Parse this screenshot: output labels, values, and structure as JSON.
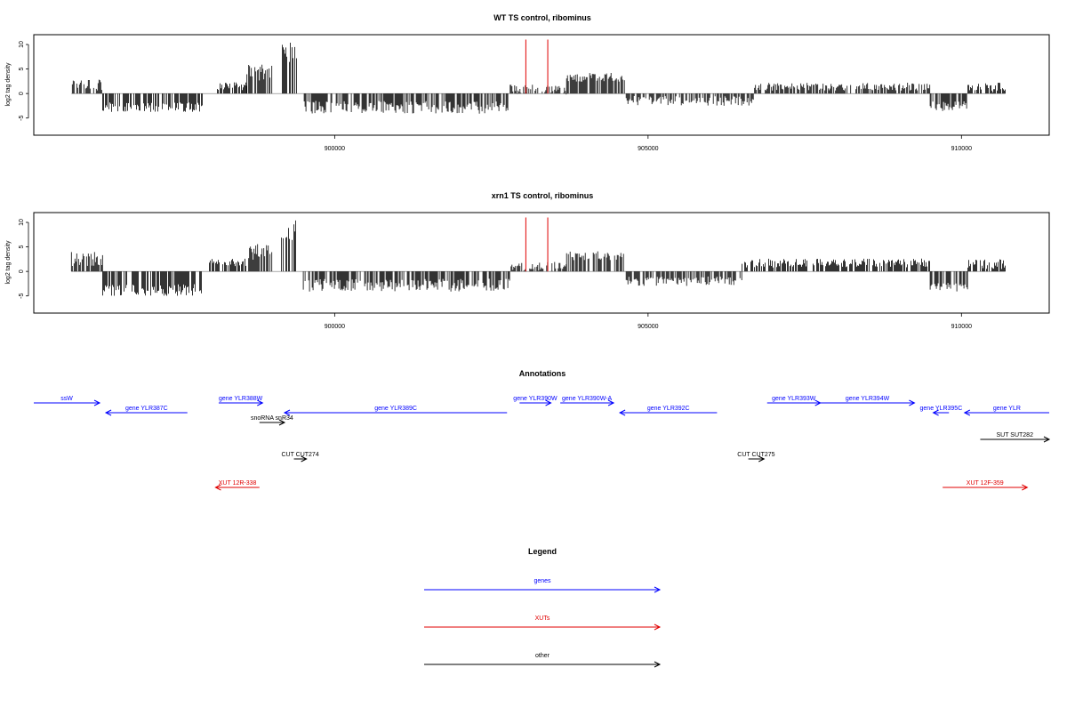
{
  "colors": {
    "axis": "#000000",
    "bars": "#000000",
    "marker": "#e00000",
    "genes": "#0000ff",
    "xuts": "#e00000",
    "other": "#000000"
  },
  "chart_data": [
    {
      "type": "bar",
      "title": "WT TS control, ribominus",
      "xlabel": "",
      "ylabel": "log2 tag density",
      "xlim": [
        895200,
        911400
      ],
      "ylim": [
        -8.5,
        12
      ],
      "x_ticks": [
        900000,
        905000,
        910000
      ],
      "x_tick_labels": [
        "900000",
        "905000",
        "910000"
      ],
      "y_ticks": [
        -5,
        0,
        5,
        10
      ],
      "y_tick_labels": [
        "-5",
        "0",
        "5",
        "10"
      ],
      "data_extent": [
        895800,
        910700
      ],
      "marker_lines": [
        903050,
        903400
      ],
      "segments": [
        {
          "from": 895800,
          "to": 896300,
          "level": 2.0,
          "spread": 1.5
        },
        {
          "from": 896300,
          "to": 897900,
          "level": -2.8,
          "spread": 1.0
        },
        {
          "from": 898100,
          "to": 898600,
          "level": 1.5,
          "spread": 0.8
        },
        {
          "from": 898600,
          "to": 899000,
          "level": 4.2,
          "spread": 1.8
        },
        {
          "from": 899150,
          "to": 899400,
          "level": 8.5,
          "spread": 2.2
        },
        {
          "from": 899500,
          "to": 902800,
          "level": -2.8,
          "spread": 1.3
        },
        {
          "from": 902800,
          "to": 903700,
          "level": 0.8,
          "spread": 1.0
        },
        {
          "from": 903700,
          "to": 904650,
          "level": 3.3,
          "spread": 0.9
        },
        {
          "from": 904650,
          "to": 906700,
          "level": -1.5,
          "spread": 1.0
        },
        {
          "from": 906700,
          "to": 909500,
          "level": 1.4,
          "spread": 0.8
        },
        {
          "from": 909500,
          "to": 910100,
          "level": -2.6,
          "spread": 1.0
        },
        {
          "from": 910100,
          "to": 910700,
          "level": 1.2,
          "spread": 1.0
        }
      ]
    },
    {
      "type": "bar",
      "title": "xrn1 TS control, ribominus",
      "xlabel": "",
      "ylabel": "log2 tag density",
      "xlim": [
        895200,
        911400
      ],
      "ylim": [
        -8.5,
        12
      ],
      "x_ticks": [
        900000,
        905000,
        910000
      ],
      "x_tick_labels": [
        "900000",
        "905000",
        "910000"
      ],
      "y_ticks": [
        -5,
        0,
        5,
        10
      ],
      "y_tick_labels": [
        "-5",
        "0",
        "5",
        "10"
      ],
      "data_extent": [
        895800,
        910700
      ],
      "marker_lines": [
        903050,
        903400
      ],
      "segments": [
        {
          "from": 895800,
          "to": 896300,
          "level": 2.5,
          "spread": 1.5
        },
        {
          "from": 896300,
          "to": 897900,
          "level": -3.8,
          "spread": 1.2
        },
        {
          "from": 898000,
          "to": 898600,
          "level": 1.8,
          "spread": 0.8
        },
        {
          "from": 898600,
          "to": 899000,
          "level": 4.0,
          "spread": 1.6
        },
        {
          "from": 899150,
          "to": 899400,
          "level": 8.5,
          "spread": 2.2
        },
        {
          "from": 899500,
          "to": 902800,
          "level": -2.8,
          "spread": 1.3
        },
        {
          "from": 902800,
          "to": 903700,
          "level": 1.0,
          "spread": 1.0
        },
        {
          "from": 903700,
          "to": 904650,
          "level": 3.2,
          "spread": 0.9
        },
        {
          "from": 904650,
          "to": 906500,
          "level": -2.0,
          "spread": 1.0
        },
        {
          "from": 906500,
          "to": 909500,
          "level": 1.7,
          "spread": 0.9
        },
        {
          "from": 909500,
          "to": 910100,
          "level": -3.2,
          "spread": 1.0
        },
        {
          "from": 910100,
          "to": 910700,
          "level": 1.5,
          "spread": 1.0
        }
      ]
    }
  ],
  "annotations": {
    "title": "Annotations",
    "features": [
      {
        "label": "ssW",
        "category": "genes",
        "strand": "+",
        "start": 895200,
        "end": 896250,
        "row": 0
      },
      {
        "label": "gene YLR387C",
        "category": "genes",
        "strand": "-",
        "start": 896350,
        "end": 897650,
        "row": 1
      },
      {
        "label": "gene YLR388W",
        "category": "genes",
        "strand": "+",
        "start": 898150,
        "end": 898850,
        "row": 0
      },
      {
        "label": "snoRNA snR34",
        "category": "other",
        "strand": "+",
        "start": 898800,
        "end": 899200,
        "row": 2
      },
      {
        "label": "gene YLR389C",
        "category": "genes",
        "strand": "-",
        "start": 899200,
        "end": 902750,
        "row": 1
      },
      {
        "label": "gene YLR390W",
        "category": "genes",
        "strand": "+",
        "start": 902950,
        "end": 903450,
        "row": 0
      },
      {
        "label": "gene YLR390W-A",
        "category": "genes",
        "strand": "+",
        "start": 903600,
        "end": 904450,
        "row": 0
      },
      {
        "label": "gene YLR392C",
        "category": "genes",
        "strand": "-",
        "start": 904550,
        "end": 906100,
        "row": 1
      },
      {
        "label": "gene YLR393W",
        "category": "genes",
        "strand": "+",
        "start": 906900,
        "end": 907750,
        "row": 0
      },
      {
        "label": "gene YLR394W",
        "category": "genes",
        "strand": "+",
        "start": 907750,
        "end": 909250,
        "row": 0
      },
      {
        "label": "gene YLR395C",
        "category": "genes",
        "strand": "-",
        "start": 909550,
        "end": 909800,
        "row": 1
      },
      {
        "label": "gene YLR",
        "category": "genes",
        "strand": "-",
        "start": 910050,
        "end": 911400,
        "row": 1
      },
      {
        "label": "SUT SUT282",
        "category": "other",
        "strand": "+",
        "start": 910300,
        "end": 911400,
        "row": 3
      },
      {
        "label": "CUT CUT274",
        "category": "other",
        "strand": "+",
        "start": 899350,
        "end": 899550,
        "row": 4
      },
      {
        "label": "CUT CUT275",
        "category": "other",
        "strand": "+",
        "start": 906600,
        "end": 906850,
        "row": 4
      },
      {
        "label": "XUT 12R-338",
        "category": "xuts",
        "strand": "-",
        "start": 898100,
        "end": 898800,
        "row": 5
      },
      {
        "label": "XUT 12F-359",
        "category": "xuts",
        "strand": "+",
        "start": 909700,
        "end": 911050,
        "row": 5
      }
    ]
  },
  "legend": {
    "title": "Legend",
    "items": [
      {
        "label": "genes",
        "category": "genes"
      },
      {
        "label": "XUTs",
        "category": "xuts"
      },
      {
        "label": "other",
        "category": "other"
      }
    ]
  }
}
